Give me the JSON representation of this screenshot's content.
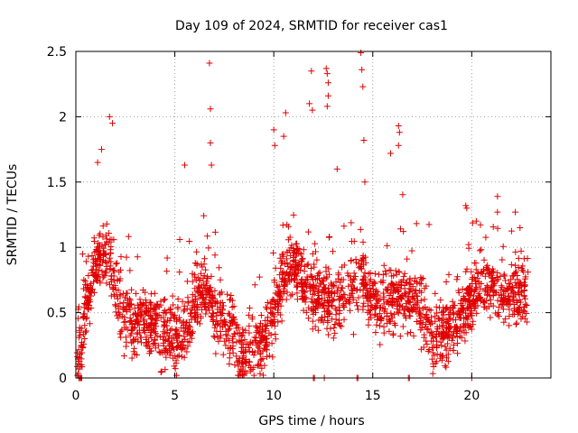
{
  "chart_data": {
    "type": "scatter",
    "title": "Day 109 of 2024, SRMTID for receiver cas1",
    "xlabel": "GPS time / hours",
    "ylabel": "SRMTID / TECUs",
    "xlim": [
      0,
      24
    ],
    "ylim": [
      0,
      2.5
    ],
    "xticks": [
      0,
      5,
      10,
      15,
      20
    ],
    "yticks": [
      0,
      0.5,
      1,
      1.5,
      2,
      2.5
    ],
    "xtick_labels": [
      "0",
      "5",
      "10",
      "15",
      "20"
    ],
    "ytick_labels": [
      "0",
      "0.5",
      "1",
      "1.5",
      "2",
      "2.5"
    ],
    "grid": true,
    "marker": "+",
    "color": "#e00000",
    "profile": [
      {
        "x": 0.0,
        "y": 0.0
      },
      {
        "x": 0.5,
        "y": 0.55
      },
      {
        "x": 1.0,
        "y": 0.85
      },
      {
        "x": 1.5,
        "y": 1.0
      },
      {
        "x": 2.0,
        "y": 0.7
      },
      {
        "x": 2.5,
        "y": 0.45
      },
      {
        "x": 3.0,
        "y": 0.4
      },
      {
        "x": 3.5,
        "y": 0.45
      },
      {
        "x": 4.0,
        "y": 0.4
      },
      {
        "x": 4.5,
        "y": 0.35
      },
      {
        "x": 5.0,
        "y": 0.3
      },
      {
        "x": 5.5,
        "y": 0.35
      },
      {
        "x": 6.0,
        "y": 0.6
      },
      {
        "x": 6.5,
        "y": 0.7
      },
      {
        "x": 7.0,
        "y": 0.5
      },
      {
        "x": 7.5,
        "y": 0.4
      },
      {
        "x": 8.0,
        "y": 0.3
      },
      {
        "x": 8.5,
        "y": 0.2
      },
      {
        "x": 9.0,
        "y": 0.2
      },
      {
        "x": 9.5,
        "y": 0.3
      },
      {
        "x": 10.0,
        "y": 0.5
      },
      {
        "x": 10.5,
        "y": 0.8
      },
      {
        "x": 11.0,
        "y": 0.9
      },
      {
        "x": 11.5,
        "y": 0.7
      },
      {
        "x": 12.0,
        "y": 0.65
      },
      {
        "x": 12.5,
        "y": 0.6
      },
      {
        "x": 13.0,
        "y": 0.55
      },
      {
        "x": 13.5,
        "y": 0.6
      },
      {
        "x": 14.0,
        "y": 0.7
      },
      {
        "x": 14.5,
        "y": 0.75
      },
      {
        "x": 15.0,
        "y": 0.6
      },
      {
        "x": 15.5,
        "y": 0.55
      },
      {
        "x": 16.0,
        "y": 0.6
      },
      {
        "x": 16.5,
        "y": 0.65
      },
      {
        "x": 17.0,
        "y": 0.6
      },
      {
        "x": 17.5,
        "y": 0.5
      },
      {
        "x": 18.0,
        "y": 0.35
      },
      {
        "x": 18.5,
        "y": 0.3
      },
      {
        "x": 19.0,
        "y": 0.35
      },
      {
        "x": 19.5,
        "y": 0.5
      },
      {
        "x": 20.0,
        "y": 0.6
      },
      {
        "x": 20.5,
        "y": 0.75
      },
      {
        "x": 21.0,
        "y": 0.7
      },
      {
        "x": 21.5,
        "y": 0.65
      },
      {
        "x": 22.0,
        "y": 0.6
      },
      {
        "x": 22.5,
        "y": 0.65
      },
      {
        "x": 23.0,
        "y": 0.6
      }
    ],
    "peaks": [
      {
        "x": 1.7,
        "y": 2.0
      },
      {
        "x": 1.85,
        "y": 1.95
      },
      {
        "x": 1.3,
        "y": 1.75
      },
      {
        "x": 1.1,
        "y": 1.65
      },
      {
        "x": 5.5,
        "y": 1.63
      },
      {
        "x": 6.75,
        "y": 2.41
      },
      {
        "x": 6.8,
        "y": 2.06
      },
      {
        "x": 6.8,
        "y": 1.8
      },
      {
        "x": 6.85,
        "y": 1.63
      },
      {
        "x": 10.0,
        "y": 1.9
      },
      {
        "x": 10.05,
        "y": 1.78
      },
      {
        "x": 10.6,
        "y": 2.03
      },
      {
        "x": 10.5,
        "y": 1.85
      },
      {
        "x": 11.9,
        "y": 2.35
      },
      {
        "x": 11.8,
        "y": 2.1
      },
      {
        "x": 11.95,
        "y": 2.05
      },
      {
        "x": 12.65,
        "y": 2.37
      },
      {
        "x": 12.7,
        "y": 2.33
      },
      {
        "x": 12.75,
        "y": 2.26
      },
      {
        "x": 12.75,
        "y": 2.16
      },
      {
        "x": 12.7,
        "y": 2.08
      },
      {
        "x": 14.4,
        "y": 2.49
      },
      {
        "x": 14.45,
        "y": 2.36
      },
      {
        "x": 14.5,
        "y": 2.23
      },
      {
        "x": 14.55,
        "y": 1.82
      },
      {
        "x": 14.6,
        "y": 1.5
      },
      {
        "x": 16.3,
        "y": 1.93
      },
      {
        "x": 16.35,
        "y": 1.88
      },
      {
        "x": 16.3,
        "y": 1.78
      },
      {
        "x": 15.9,
        "y": 1.72
      },
      {
        "x": 13.2,
        "y": 1.6
      },
      {
        "x": 19.7,
        "y": 1.32
      },
      {
        "x": 19.75,
        "y": 1.3
      },
      {
        "x": 21.3,
        "y": 1.27
      },
      {
        "x": 22.2,
        "y": 1.27
      }
    ],
    "zero_points": [
      0.15,
      0.2,
      0.25,
      0.3,
      12.0,
      12.05,
      12.55,
      14.2,
      14.25,
      16.8,
      16.85,
      20.0
    ]
  }
}
